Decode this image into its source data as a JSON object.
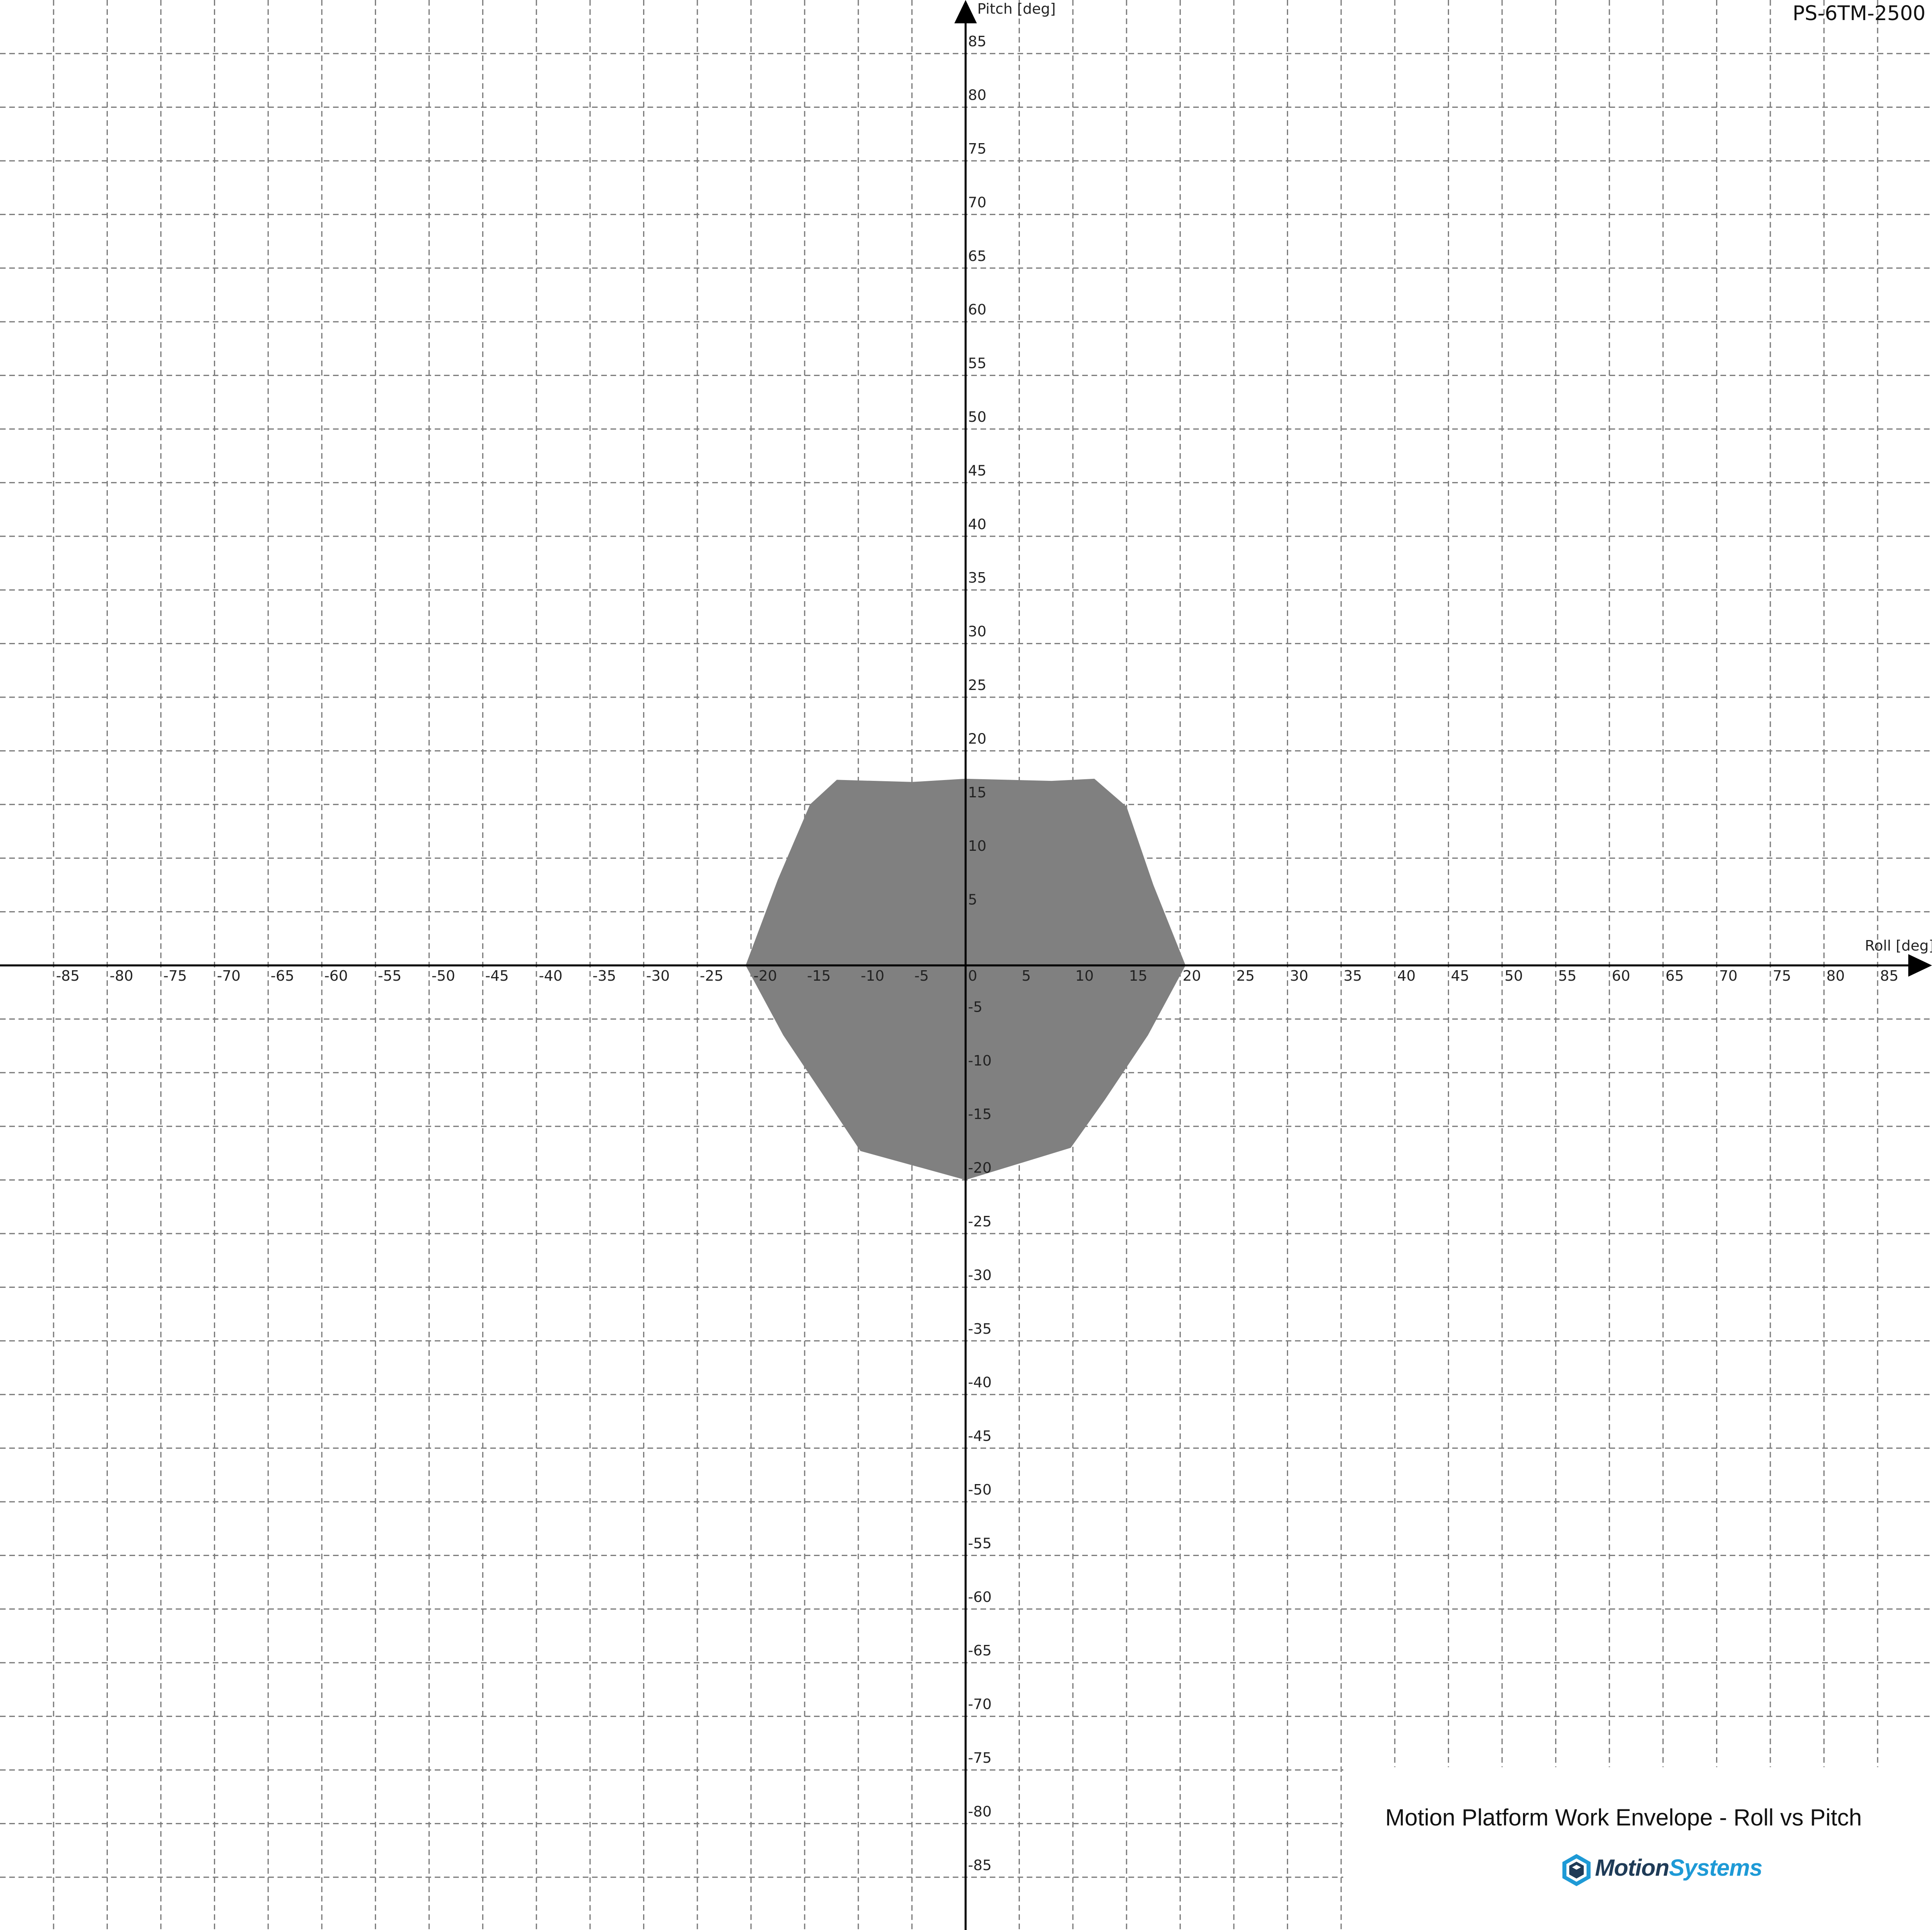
{
  "model_label": "PS-6TM-2500",
  "footer": {
    "title": "Motion Platform Work Envelope - Roll vs Pitch",
    "brand_part1": "Motion",
    "brand_part2": "Systems",
    "logo_icon": "motionsystems-cube-logo-icon"
  },
  "colors": {
    "envelope_fill": "#808080",
    "grid": "#7a7a7a",
    "axis": "#000000",
    "brand_dark": "#1f3b57",
    "brand_blue": "#1e9ad6",
    "background": "#ffffff"
  },
  "chart_data": {
    "type": "area",
    "title": "Motion Platform Work Envelope - Roll vs Pitch",
    "xlabel": "Roll [deg]",
    "ylabel": "Pitch [deg]",
    "xlim": [
      -90,
      90
    ],
    "ylim": [
      -90,
      90
    ],
    "tick_step": 5,
    "x_ticks": [
      "-85",
      "-80",
      "-75",
      "-70",
      "-65",
      "-60",
      "-55",
      "-50",
      "-45",
      "-40",
      "-35",
      "-30",
      "-25",
      "-20",
      "-15",
      "-10",
      "-5",
      "0",
      "5",
      "10",
      "15",
      "20",
      "25",
      "30",
      "35",
      "40",
      "45",
      "50",
      "55",
      "60",
      "65",
      "70",
      "75",
      "80",
      "85"
    ],
    "y_ticks": [
      "85",
      "80",
      "75",
      "70",
      "65",
      "60",
      "55",
      "50",
      "45",
      "40",
      "35",
      "30",
      "25",
      "20",
      "15",
      "10",
      "5",
      "-5",
      "-10",
      "-15",
      "-20",
      "-25",
      "-30",
      "-35",
      "-40",
      "-45",
      "-50",
      "-55",
      "-60",
      "-65",
      "-70",
      "-75",
      "-80",
      "-85"
    ],
    "grid": true,
    "series": [
      {
        "points": [
          [
            -20.5,
            0
          ],
          [
            -17.5,
            8
          ],
          [
            -14.5,
            15
          ],
          [
            -12,
            17.3
          ],
          [
            -5,
            17.1
          ],
          [
            0,
            17.4
          ],
          [
            8,
            17.2
          ],
          [
            12,
            17.4
          ],
          [
            15,
            14.8
          ],
          [
            17.5,
            7.5
          ],
          [
            20.5,
            0
          ],
          [
            17,
            -6.5
          ],
          [
            13,
            -12.5
          ],
          [
            9.8,
            -17
          ],
          [
            0,
            -20
          ],
          [
            -9.8,
            -17.3
          ],
          [
            -13,
            -12.5
          ],
          [
            -17,
            -6.5
          ],
          [
            -20.5,
            0
          ]
        ]
      }
    ]
  }
}
